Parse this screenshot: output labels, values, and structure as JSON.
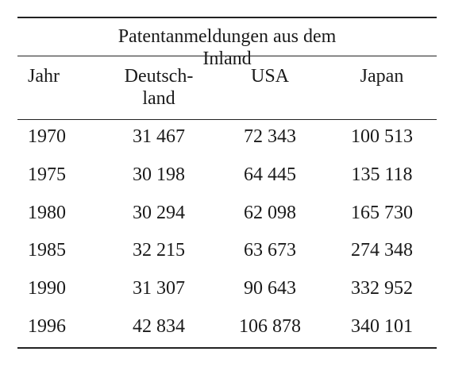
{
  "table": {
    "title": "Patentanmeldungen aus dem Inland",
    "headers": [
      "Jahr",
      "Deutsch-\nland",
      "USA",
      "Japan"
    ],
    "rows": [
      [
        "1970",
        "31 467",
        "72 343",
        "100 513"
      ],
      [
        "1975",
        "30 198",
        "64 445",
        "135 118"
      ],
      [
        "1980",
        "30 294",
        "62 098",
        "165 730"
      ],
      [
        "1985",
        "32 215",
        "63 673",
        "274 348"
      ],
      [
        "1990",
        "31 307",
        "90 643",
        "332 952"
      ],
      [
        "1996",
        "42 834",
        "106 878",
        "340 101"
      ]
    ]
  }
}
